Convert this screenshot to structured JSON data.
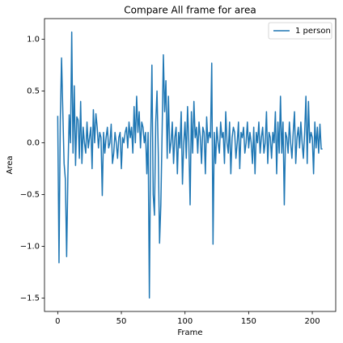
{
  "chart_data": {
    "type": "line",
    "title": "Compare All frame for area",
    "xlabel": "Frame",
    "ylabel": "Area",
    "x": [
      0,
      1,
      2,
      3,
      4,
      5,
      6,
      7,
      8,
      9,
      10,
      11,
      12,
      13,
      14,
      15,
      16,
      17,
      18,
      19,
      20,
      21,
      22,
      23,
      24,
      25,
      26,
      27,
      28,
      29,
      30,
      31,
      32,
      33,
      34,
      35,
      36,
      37,
      38,
      39,
      40,
      41,
      42,
      43,
      44,
      45,
      46,
      47,
      48,
      49,
      50,
      51,
      52,
      53,
      54,
      55,
      56,
      57,
      58,
      59,
      60,
      61,
      62,
      63,
      64,
      65,
      66,
      67,
      68,
      69,
      70,
      71,
      72,
      73,
      74,
      75,
      76,
      77,
      78,
      79,
      80,
      81,
      82,
      83,
      84,
      85,
      86,
      87,
      88,
      89,
      90,
      91,
      92,
      93,
      94,
      95,
      96,
      97,
      98,
      99,
      100,
      101,
      102,
      103,
      104,
      105,
      106,
      107,
      108,
      109,
      110,
      111,
      112,
      113,
      114,
      115,
      116,
      117,
      118,
      119,
      120,
      121,
      122,
      123,
      124,
      125,
      126,
      127,
      128,
      129,
      130,
      131,
      132,
      133,
      134,
      135,
      136,
      137,
      138,
      139,
      140,
      141,
      142,
      143,
      144,
      145,
      146,
      147,
      148,
      149,
      150,
      151,
      152,
      153,
      154,
      155,
      156,
      157,
      158,
      159,
      160,
      161,
      162,
      163,
      164,
      165,
      166,
      167,
      168,
      169,
      170,
      171,
      172,
      173,
      174,
      175,
      176,
      177,
      178,
      179,
      180,
      181,
      182,
      183,
      184,
      185,
      186,
      187,
      188,
      189,
      190,
      191,
      192,
      193,
      194,
      195,
      196,
      197,
      198,
      199,
      200,
      201,
      202,
      203,
      204,
      205,
      206,
      207,
      208
    ],
    "series": [
      {
        "name": "1 person",
        "color": "#1f77b4",
        "values": [
          0.26,
          -1.16,
          0.2,
          0.82,
          0.3,
          -0.2,
          -0.35,
          -1.1,
          -0.3,
          0.27,
          0.0,
          1.07,
          -0.1,
          0.55,
          -0.22,
          0.25,
          0.22,
          -0.15,
          0.4,
          -0.2,
          0.15,
          0.0,
          -0.1,
          0.2,
          -0.05,
          0.05,
          0.15,
          -0.25,
          0.32,
          0.0,
          0.28,
          0.15,
          -0.05,
          0.1,
          0.05,
          -0.51,
          0.1,
          -0.1,
          0.05,
          0.15,
          -0.05,
          0.0,
          0.18,
          -0.2,
          -0.1,
          0.1,
          0.0,
          -0.15,
          0.05,
          0.1,
          -0.25,
          0.05,
          0.0,
          0.1,
          0.15,
          -0.05,
          0.2,
          0.05,
          0.15,
          -0.1,
          0.35,
          0.0,
          0.45,
          0.1,
          0.3,
          -0.05,
          0.2,
          0.15,
          0.0,
          0.1,
          -0.3,
          0.1,
          -1.5,
          0.0,
          0.75,
          -0.5,
          -0.7,
          0.2,
          0.5,
          -0.1,
          -0.97,
          -0.6,
          0.1,
          0.85,
          0.3,
          0.6,
          -0.15,
          0.45,
          -0.1,
          0.0,
          0.2,
          -0.2,
          0.05,
          0.15,
          -0.3,
          0.1,
          -0.05,
          0.3,
          -0.4,
          0.0,
          0.2,
          -0.15,
          0.35,
          0.0,
          -0.6,
          0.3,
          -0.1,
          0.4,
          0.05,
          0.15,
          -0.1,
          0.2,
          0.05,
          -0.2,
          0.15,
          0.1,
          -0.3,
          0.25,
          0.0,
          0.1,
          0.05,
          0.77,
          -0.98,
          0.1,
          -0.2,
          0.15,
          0.0,
          -0.1,
          0.2,
          0.05,
          0.1,
          -0.2,
          0.3,
          0.0,
          -0.1,
          0.2,
          -0.3,
          0.05,
          0.15,
          0.1,
          -0.15,
          0.0,
          0.2,
          -0.25,
          0.1,
          0.05,
          0.15,
          -0.1,
          0.0,
          0.2,
          -0.05,
          0.1,
          0.0,
          -0.2,
          0.15,
          -0.3,
          0.1,
          0.0,
          0.2,
          -0.1,
          0.05,
          0.15,
          -0.1,
          0.0,
          0.3,
          -0.2,
          0.1,
          0.05,
          -0.15,
          0.1,
          0.0,
          0.3,
          -0.3,
          0.2,
          -0.1,
          0.45,
          -0.1,
          0.2,
          -0.6,
          0.1,
          0.05,
          -0.1,
          0.2,
          0.0,
          -0.15,
          0.1,
          0.3,
          -0.2,
          0.05,
          0.15,
          -0.05,
          0.2,
          0.0,
          -0.15,
          0.1,
          0.45,
          -0.2,
          0.4,
          0.0,
          0.1,
          0.05,
          -0.3,
          0.2,
          -0.05,
          0.15,
          -0.1,
          0.18,
          -0.06,
          -0.06
        ]
      }
    ],
    "xlim": [
      -10.4,
      218.4
    ],
    "ylim": [
      -1.63,
      1.2
    ],
    "xticks": [
      0,
      50,
      100,
      150,
      200
    ],
    "yticks": [
      {
        "value": -1.5,
        "label": "−1.5"
      },
      {
        "value": -1.0,
        "label": "−1.0"
      },
      {
        "value": -0.5,
        "label": "−0.5"
      },
      {
        "value": 0.0,
        "label": "0.0"
      },
      {
        "value": 0.5,
        "label": "0.5"
      },
      {
        "value": 1.0,
        "label": "1.0"
      }
    ],
    "grid": false,
    "legend": "upper right"
  }
}
